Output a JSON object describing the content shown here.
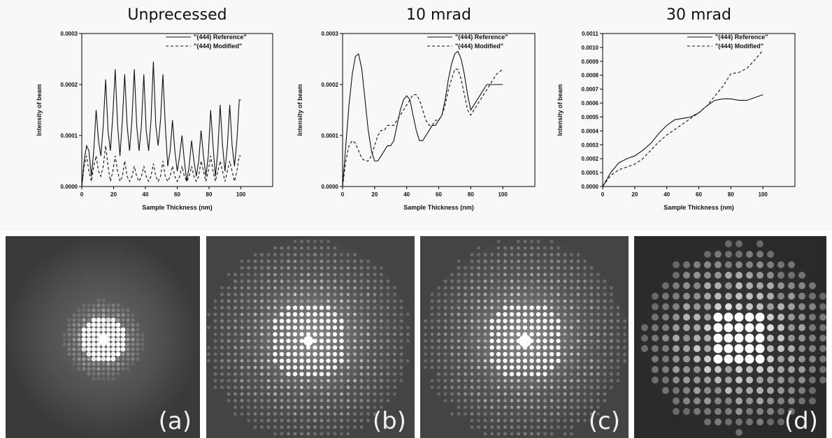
{
  "chart_data": [
    {
      "type": "line",
      "title": "Unprecessed",
      "xlabel": "Sample Thickness (nm)",
      "ylabel": "Intensity of beam",
      "xlim": [
        0,
        120
      ],
      "ylim": [
        0,
        0.0003
      ],
      "xticks": [
        "0",
        "20",
        "40",
        "60",
        "80",
        "100"
      ],
      "yticks": [
        "0.0000",
        "0.0001",
        "0.0002",
        "0.0003"
      ],
      "legend_position": "top-right",
      "series": [
        {
          "name": "\"(444) Reference\"",
          "style": "solid",
          "x": [
            0,
            1.5,
            3,
            4.5,
            6,
            7.5,
            9,
            10.5,
            12,
            13.5,
            15,
            16.5,
            18,
            19.5,
            21,
            22.5,
            24,
            25.5,
            27,
            28.5,
            30,
            31.5,
            33,
            34.5,
            36,
            37.5,
            39,
            40.5,
            42,
            43.5,
            45,
            46.5,
            48,
            49.5,
            51,
            52.5,
            54,
            55.5,
            57,
            58.5,
            60,
            61.5,
            63,
            64.5,
            66,
            67.5,
            69,
            70.5,
            72,
            73.5,
            75,
            76.5,
            78,
            79.5,
            81,
            82.5,
            84,
            85.5,
            87,
            88.5,
            90,
            91.5,
            93,
            94.5,
            96,
            97.5,
            99,
            100
          ],
          "y": [
            0,
            5e-05,
            8e-05,
            7e-05,
            2e-05,
            7e-05,
            0.00015,
            9e-05,
            6e-05,
            0.00012,
            0.00021,
            0.00011,
            7e-05,
            0.00014,
            0.00023,
            0.00012,
            6e-05,
            0.00013,
            0.00022,
            0.00012,
            7e-05,
            0.00013,
            0.00023,
            0.00012,
            7e-05,
            0.00012,
            0.00022,
            0.00011,
            7e-05,
            0.00013,
            0.000245,
            0.00012,
            8e-05,
            0.00013,
            0.00022,
            0.00012,
            4e-05,
            7e-05,
            0.00013,
            7e-05,
            3e-05,
            6e-05,
            0.0001,
            5e-05,
            1e-05,
            4e-05,
            9e-05,
            5e-05,
            2e-05,
            5e-05,
            0.00011,
            6e-05,
            2e-05,
            6e-05,
            0.00015,
            8e-05,
            2e-05,
            7e-05,
            0.00016,
            8e-05,
            3e-05,
            8e-05,
            0.00016,
            8e-05,
            4e-05,
            9e-05,
            0.00017,
            0.00017
          ]
        },
        {
          "name": "\"(444) Modified\"",
          "style": "dashed",
          "x": [
            0,
            1.5,
            3,
            4.5,
            6,
            7.5,
            9,
            10.5,
            12,
            13.5,
            15,
            16.5,
            18,
            19.5,
            21,
            22.5,
            24,
            25.5,
            27,
            28.5,
            30,
            31.5,
            33,
            34.5,
            36,
            37.5,
            39,
            40.5,
            42,
            43.5,
            45,
            46.5,
            48,
            49.5,
            51,
            52.5,
            54,
            55.5,
            57,
            58.5,
            60,
            61.5,
            63,
            64.5,
            66,
            67.5,
            69,
            70.5,
            72,
            73.5,
            75,
            76.5,
            78,
            79.5,
            81,
            82.5,
            84,
            85.5,
            87,
            88.5,
            90,
            91.5,
            93,
            94.5,
            96,
            97.5,
            99,
            100
          ],
          "y": [
            0,
            4e-05,
            6e-05,
            3e-05,
            1e-05,
            4e-05,
            6e-05,
            3e-05,
            2e-05,
            4e-05,
            8e-05,
            4e-05,
            1e-05,
            3e-05,
            6e-05,
            3e-05,
            1e-05,
            2e-05,
            5e-05,
            2e-05,
            1e-05,
            2e-05,
            4e-05,
            2e-05,
            1e-05,
            2e-05,
            4e-05,
            2e-05,
            1e-05,
            2e-05,
            4.5e-05,
            2e-05,
            1e-05,
            2e-05,
            5e-05,
            2e-05,
            1e-05,
            2e-05,
            4e-05,
            2e-05,
            1e-05,
            2e-05,
            4e-05,
            2e-05,
            1e-05,
            2e-05,
            4e-05,
            2e-05,
            1e-05,
            2e-05,
            5e-05,
            3e-05,
            1e-05,
            3e-05,
            6e-05,
            3e-05,
            1e-05,
            3e-05,
            5e-05,
            3e-05,
            1e-05,
            3e-05,
            5e-05,
            3e-05,
            1e-05,
            3e-05,
            6e-05,
            6e-05
          ]
        }
      ]
    },
    {
      "type": "line",
      "title": "10 mrad",
      "xlabel": "Sample Thickness (nm)",
      "ylabel": "Intensity of beam",
      "xlim": [
        0,
        120
      ],
      "ylim": [
        0,
        0.0003
      ],
      "xticks": [
        "0",
        "20",
        "40",
        "60",
        "80",
        "100"
      ],
      "yticks": [
        "0.0000",
        "0.0001",
        "0.0002",
        "0.0003"
      ],
      "legend_position": "top-right",
      "series": [
        {
          "name": "\"(444) Reference\"",
          "style": "solid",
          "x": [
            0,
            2,
            4,
            6,
            8,
            10,
            12,
            14,
            16,
            18,
            20,
            22,
            24,
            26,
            28,
            30,
            32,
            34,
            36,
            38,
            40,
            42,
            44,
            46,
            48,
            50,
            52,
            54,
            56,
            58,
            60,
            62,
            64,
            66,
            68,
            70,
            72,
            74,
            76,
            78,
            80,
            82,
            84,
            86,
            88,
            90,
            92,
            94,
            96,
            98,
            100
          ],
          "y": [
            0,
            8e-05,
            0.00016,
            0.00022,
            0.000255,
            0.00026,
            0.00023,
            0.00017,
            0.00011,
            7e-05,
            5e-05,
            5e-05,
            6e-05,
            7e-05,
            8e-05,
            8e-05,
            9e-05,
            0.00012,
            0.00015,
            0.00017,
            0.000178,
            0.00017,
            0.00014,
            0.00011,
            9e-05,
            9e-05,
            0.0001,
            0.00011,
            0.00012,
            0.00012,
            0.00013,
            0.00014,
            0.00017,
            0.00021,
            0.00024,
            0.00026,
            0.000265,
            0.00025,
            0.00022,
            0.00018,
            0.00015,
            0.00016,
            0.00017,
            0.00018,
            0.00019,
            0.0002,
            0.0002,
            0.0002,
            0.0002,
            0.0002,
            0.0002
          ]
        },
        {
          "name": "\"(444) Modified\"",
          "style": "dashed",
          "x": [
            0,
            2,
            4,
            6,
            8,
            10,
            12,
            14,
            16,
            18,
            20,
            22,
            24,
            26,
            28,
            30,
            32,
            34,
            36,
            38,
            40,
            42,
            44,
            46,
            48,
            50,
            52,
            54,
            56,
            58,
            60,
            62,
            64,
            66,
            68,
            70,
            72,
            74,
            76,
            78,
            80,
            82,
            84,
            86,
            88,
            90,
            92,
            94,
            96,
            98,
            100
          ],
          "y": [
            0,
            5e-05,
            8e-05,
            9e-05,
            8.5e-05,
            7e-05,
            5.5e-05,
            5e-05,
            5e-05,
            6e-05,
            8e-05,
            0.0001,
            0.00011,
            0.00011,
            0.00012,
            0.00012,
            0.00012,
            0.00013,
            0.00014,
            0.00015,
            0.00016,
            0.00017,
            0.00018,
            0.00018,
            0.00017,
            0.00015,
            0.00013,
            0.00012,
            0.00012,
            0.00013,
            0.00013,
            0.00014,
            0.00016,
            0.00019,
            0.00021,
            0.00023,
            0.00023,
            0.00021,
            0.00018,
            0.00015,
            0.00014,
            0.00015,
            0.00016,
            0.00017,
            0.00018,
            0.00019,
            0.0002,
            0.00021,
            0.00022,
            0.000225,
            0.00023
          ]
        }
      ]
    },
    {
      "type": "line",
      "title": "30 mrad",
      "xlabel": "Sample Thickness (nm)",
      "ylabel": "Intensity of beam",
      "xlim": [
        0,
        120
      ],
      "ylim": [
        0,
        0.0011
      ],
      "xticks": [
        "0",
        "20",
        "40",
        "60",
        "80",
        "100"
      ],
      "yticks": [
        "0.0000",
        "0.0001",
        "0.0002",
        "0.0003",
        "0.0004",
        "0.0005",
        "0.0006",
        "0.0007",
        "0.0008",
        "0.0009",
        "0.0010",
        "0.0011"
      ],
      "legend_position": "top-right",
      "series": [
        {
          "name": "\"(444) Reference\"",
          "style": "solid",
          "x": [
            0,
            5,
            10,
            15,
            20,
            25,
            30,
            35,
            40,
            45,
            50,
            55,
            60,
            65,
            70,
            75,
            80,
            85,
            90,
            95,
            100
          ],
          "y": [
            0,
            0.0001,
            0.00017,
            0.0002,
            0.00022,
            0.00026,
            0.00031,
            0.00038,
            0.00044,
            0.00048,
            0.00049,
            0.0005,
            0.00053,
            0.00058,
            0.00062,
            0.00063,
            0.00063,
            0.00062,
            0.00062,
            0.00064,
            0.00066
          ]
        },
        {
          "name": "\"(444) Modified\"",
          "style": "dashed",
          "x": [
            0,
            5,
            10,
            15,
            20,
            25,
            30,
            35,
            40,
            45,
            50,
            55,
            60,
            65,
            70,
            75,
            80,
            85,
            90,
            95,
            100
          ],
          "y": [
            0,
            8e-05,
            0.00012,
            0.00014,
            0.00016,
            0.0002,
            0.00026,
            0.00032,
            0.00037,
            0.00041,
            0.00045,
            0.00049,
            0.00053,
            0.00058,
            0.00065,
            0.00072,
            0.00081,
            0.00082,
            0.00085,
            0.00091,
            0.00098
          ]
        }
      ]
    }
  ],
  "images": [
    {
      "label": "(a)"
    },
    {
      "label": "(b)"
    },
    {
      "label": "(c)"
    },
    {
      "label": "(d)"
    }
  ]
}
